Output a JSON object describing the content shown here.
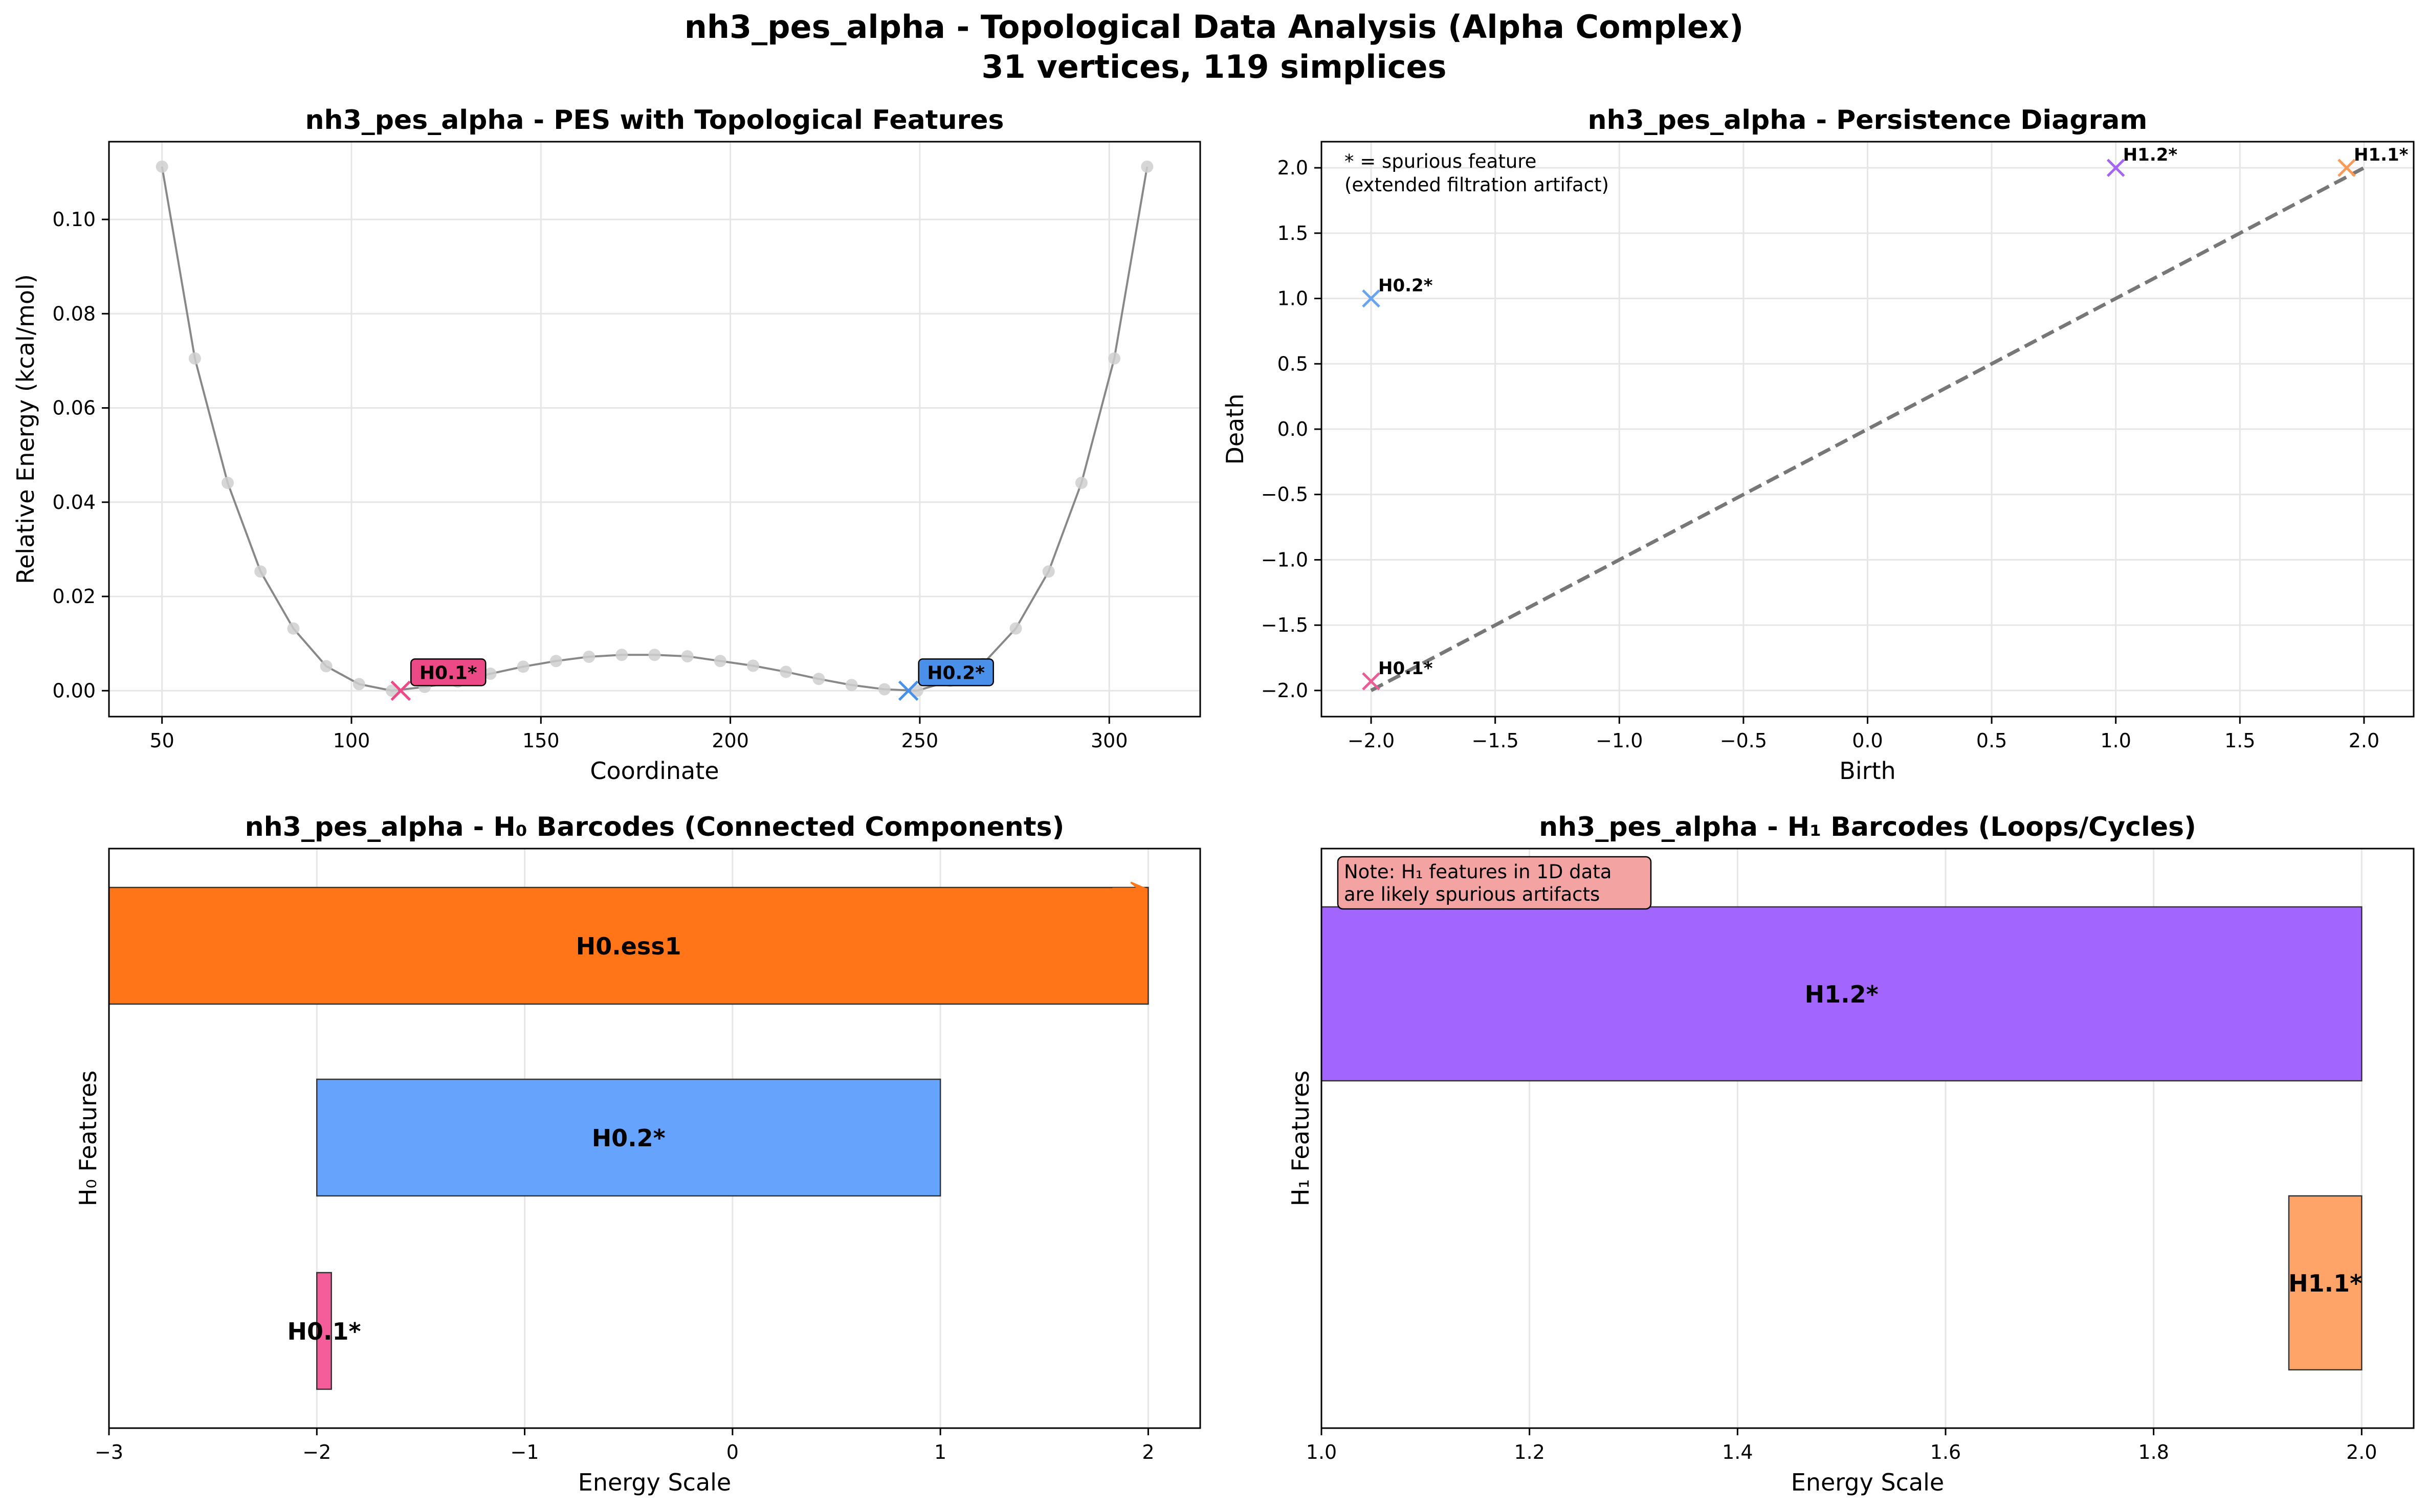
{
  "figure": {
    "title_line1": "nh3_pes_alpha - Topological Data Analysis (Alpha Complex)",
    "title_line2": "31 vertices, 119 simplices"
  },
  "chart_data": [
    {
      "id": "pes",
      "type": "line",
      "title": "nh3_pes_alpha - PES with Topological Features",
      "xlabel": "Coordinate",
      "ylabel": "Relative Energy (kcal/mol)",
      "xlim": [
        36,
        324
      ],
      "ylim": [
        -0.0055,
        0.1165
      ],
      "xticks": [
        50,
        100,
        150,
        200,
        250,
        300
      ],
      "yticks": [
        0.0,
        0.02,
        0.04,
        0.06,
        0.08,
        0.1
      ],
      "ytick_labels": [
        "0.00",
        "0.02",
        "0.04",
        "0.06",
        "0.08",
        "0.10"
      ],
      "grid": true,
      "x": [
        50,
        58.67,
        67.33,
        76,
        84.67,
        93.33,
        102,
        110.67,
        119.33,
        128,
        136.67,
        145.33,
        154,
        162.67,
        171.33,
        180,
        188.67,
        197.33,
        206,
        214.67,
        223.33,
        232,
        240.67,
        249.33,
        258,
        266.67,
        275.33,
        284,
        292.67,
        301.33,
        310
      ],
      "y": [
        0.1112,
        0.0705,
        0.0441,
        0.0253,
        0.0132,
        0.0052,
        0.0014,
        0.0,
        0.0008,
        0.0019,
        0.0036,
        0.0051,
        0.0063,
        0.0072,
        0.0076,
        0.0076,
        0.0073,
        0.0063,
        0.0053,
        0.004,
        0.0025,
        0.0012,
        0.0003,
        0.0,
        0.0021,
        0.0057,
        0.0132,
        0.0253,
        0.0441,
        0.0705,
        0.1112
      ],
      "markers": [
        {
          "label": "H0.1*",
          "x": 113,
          "y": 0.0,
          "color": "#ec4a86"
        },
        {
          "label": "H0.2*",
          "x": 247,
          "y": 0.0,
          "color": "#4a90e8"
        }
      ]
    },
    {
      "id": "persistence",
      "type": "scatter",
      "title": "nh3_pes_alpha - Persistence Diagram",
      "xlabel": "Birth",
      "ylabel": "Death",
      "xlim": [
        -2.2,
        2.2
      ],
      "ylim": [
        -2.2,
        2.2
      ],
      "xticks": [
        -2.0,
        -1.5,
        -1.0,
        -0.5,
        0.0,
        0.5,
        1.0,
        1.5,
        2.0
      ],
      "xtick_labels": [
        "−2.0",
        "−1.5",
        "−1.0",
        "−0.5",
        "0.0",
        "0.5",
        "1.0",
        "1.5",
        "2.0"
      ],
      "yticks": [
        -2.0,
        -1.5,
        -1.0,
        -0.5,
        0.0,
        0.5,
        1.0,
        1.5,
        2.0
      ],
      "ytick_labels": [
        "−2.0",
        "−1.5",
        "−1.0",
        "−0.5",
        "0.0",
        "0.5",
        "1.0",
        "1.5",
        "2.0"
      ],
      "grid": true,
      "diagonal": [
        -2.0,
        2.0
      ],
      "annotation_line1": "* = spurious feature",
      "annotation_line2": "(extended filtration artifact)",
      "points": [
        {
          "label": "H0.1*",
          "birth": -2.0,
          "death": -1.93,
          "color": "#ec5b94"
        },
        {
          "label": "H0.2*",
          "birth": -2.0,
          "death": 1.0,
          "color": "#6aa4ee"
        },
        {
          "label": "H1.2*",
          "birth": 1.0,
          "death": 2.0,
          "color": "#a365f2"
        },
        {
          "label": "H1.1*",
          "birth": 1.93,
          "death": 2.0,
          "color": "#fb9a58"
        }
      ]
    },
    {
      "id": "h0",
      "type": "bar",
      "orientation": "horizontal",
      "title": "nh3_pes_alpha - H₀ Barcodes (Connected Components)",
      "xlabel": "Energy Scale",
      "ylabel": "H₀ Features",
      "xlim": [
        -3,
        2.25
      ],
      "xticks": [
        -3,
        -2,
        -1,
        0,
        1,
        2
      ],
      "xtick_labels": [
        "−3",
        "−2",
        "−1",
        "0",
        "1",
        "2"
      ],
      "grid": true,
      "bars": [
        {
          "label": "H0.ess1",
          "birth": -3,
          "death": 2.0,
          "color": "#ff7518",
          "essential": true
        },
        {
          "label": "H0.2*",
          "birth": -2.0,
          "death": 1.0,
          "color": "#66a3fd"
        },
        {
          "label": "H0.1*",
          "birth": -2.0,
          "death": -1.93,
          "color": "#f45d9a"
        }
      ]
    },
    {
      "id": "h1",
      "type": "bar",
      "orientation": "horizontal",
      "title": "nh3_pes_alpha - H₁ Barcodes (Loops/Cycles)",
      "xlabel": "Energy Scale",
      "ylabel": "H₁ Features",
      "xlim": [
        1.0,
        2.05
      ],
      "xticks": [
        1.0,
        1.2,
        1.4,
        1.6,
        1.8,
        2.0
      ],
      "xtick_labels": [
        "1.0",
        "1.2",
        "1.4",
        "1.6",
        "1.8",
        "2.0"
      ],
      "grid": true,
      "note_line1": "Note: H₁ features in 1D data",
      "note_line2": "are likely spurious artifacts",
      "bars": [
        {
          "label": "H1.2*",
          "birth": 1.0,
          "death": 2.0,
          "color": "#a265fe"
        },
        {
          "label": "H1.1*",
          "birth": 1.93,
          "death": 2.0,
          "color": "#fea468"
        }
      ]
    }
  ]
}
